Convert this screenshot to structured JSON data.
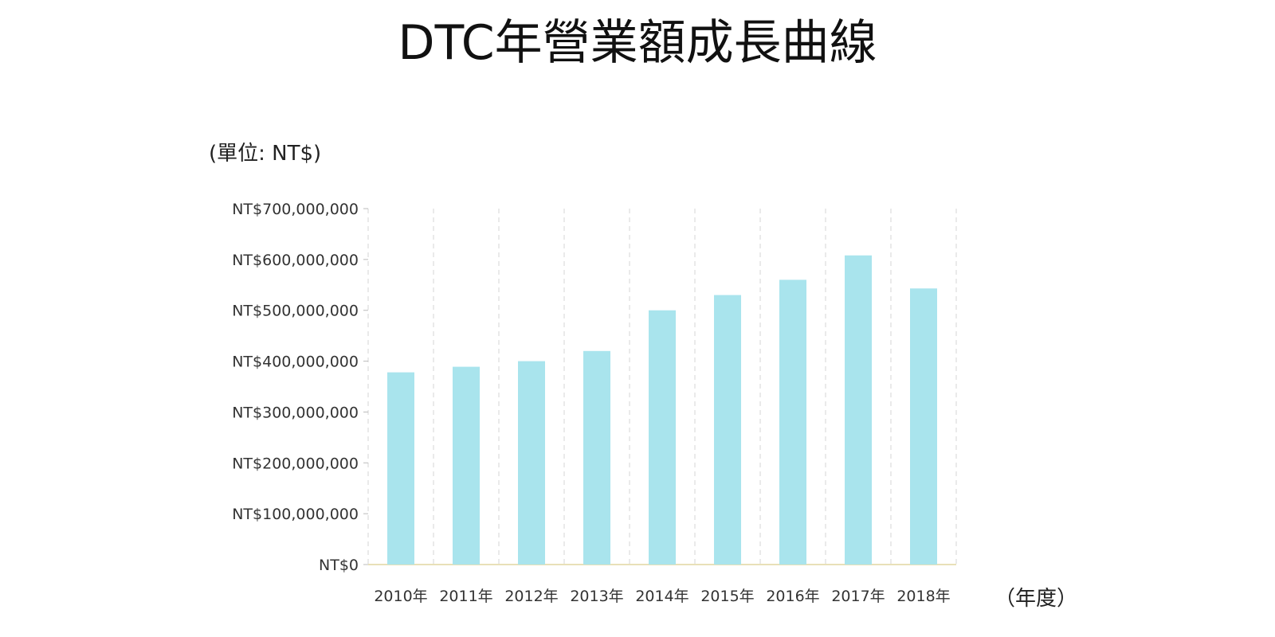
{
  "chart_data": {
    "type": "bar",
    "title": "DTC年營業額成長曲線",
    "unit_label": "(單位: NT$)",
    "x_unit_label": "（年度）",
    "categories": [
      "2010年",
      "2011年",
      "2012年",
      "2013年",
      "2014年",
      "2015年",
      "2016年",
      "2017年",
      "2018年"
    ],
    "values": [
      378000000,
      389000000,
      400000000,
      420000000,
      500000000,
      530000000,
      560000000,
      608000000,
      543000000
    ],
    "ylim": [
      0,
      700000000
    ],
    "ytick_values": [
      0,
      100000000,
      200000000,
      300000000,
      400000000,
      500000000,
      600000000,
      700000000
    ],
    "ytick_labels": [
      "NT$0",
      "NT$100,000,000",
      "NT$200,000,000",
      "NT$300,000,000",
      "NT$400,000,000",
      "NT$500,000,000",
      "NT$600,000,000",
      "NT$700,000,000"
    ],
    "xlabel": "",
    "ylabel": "",
    "grid": "vertical dashed",
    "legend": "none",
    "bar_color": "#a9e4ed",
    "grid_color": "#d4d4d4",
    "axis_color": "#e8e0b8"
  }
}
